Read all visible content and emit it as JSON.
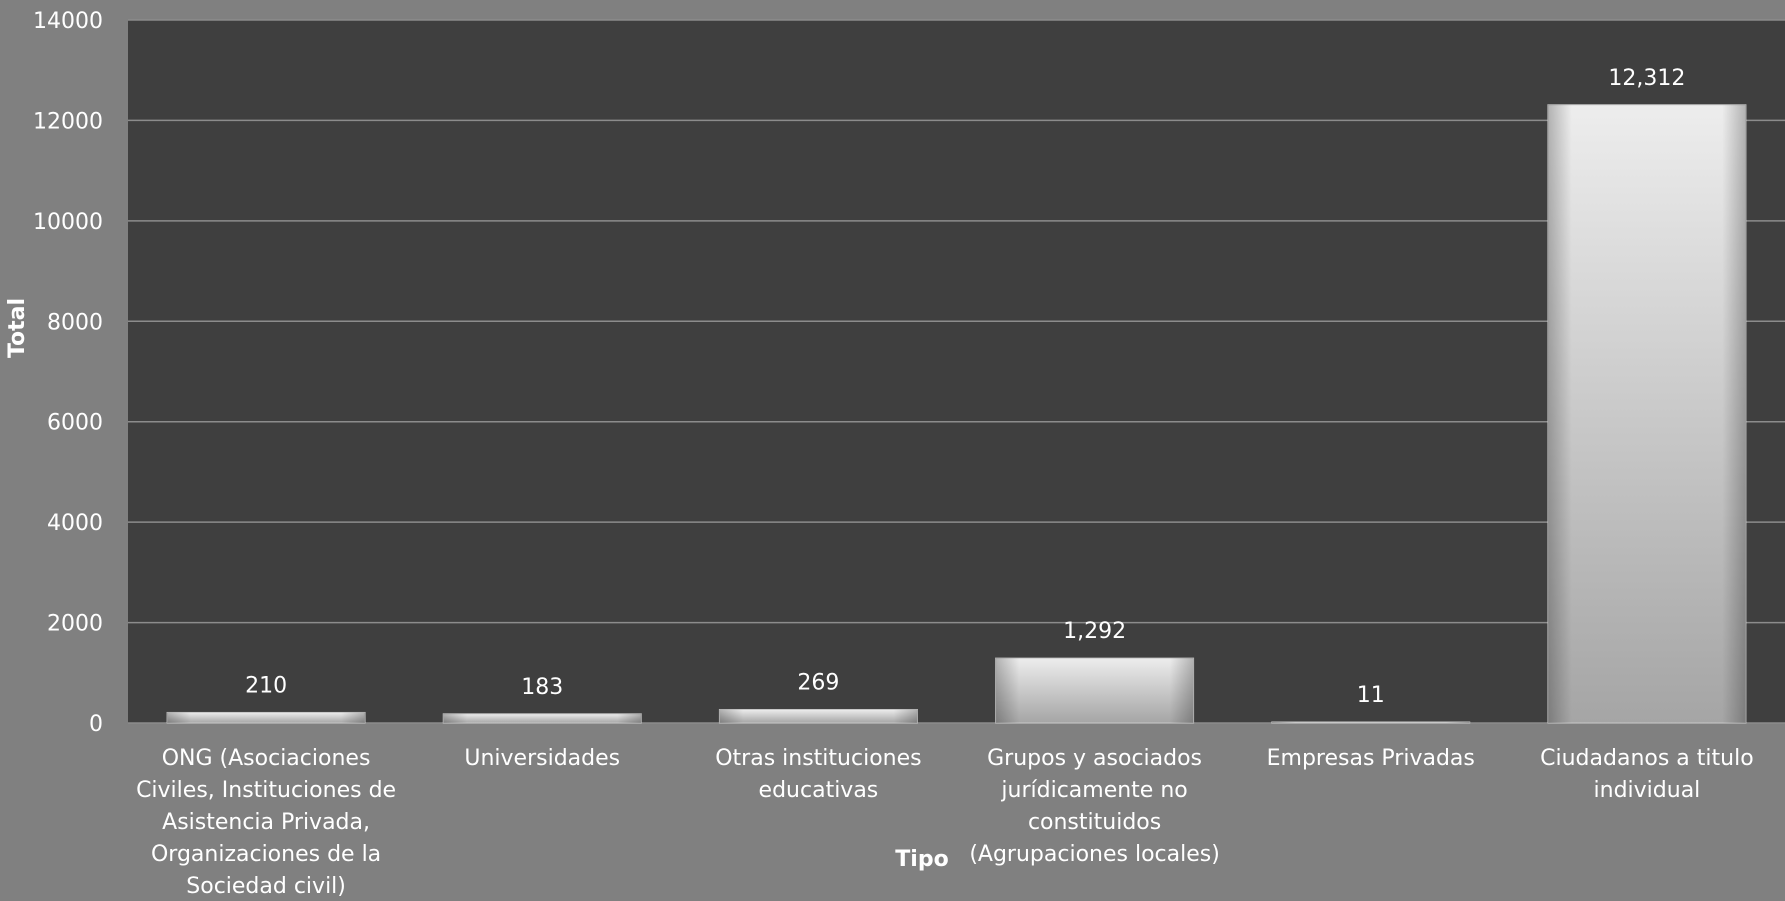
{
  "chart_data": {
    "type": "bar",
    "title": "",
    "xlabel": "Tipo",
    "ylabel": "Total",
    "ylim": [
      0,
      14000
    ],
    "yticks": [
      0,
      2000,
      4000,
      6000,
      8000,
      10000,
      12000,
      14000
    ],
    "grid": true,
    "categories": [
      "ONG (Asociaciones Civiles, Instituciones de Asistencia Privada, Organizaciones de la Sociedad civil)",
      "Universidades",
      "Otras instituciones educativas",
      "Grupos y asociados jurídicamente no constituidos (Agrupaciones locales)",
      "Empresas Privadas",
      "Ciudadanos a titulo individual"
    ],
    "category_lines": [
      [
        "ONG (Asociaciones",
        "Civiles, Instituciones de",
        "Asistencia Privada,",
        "Organizaciones de la",
        "Sociedad civil)"
      ],
      [
        "Universidades"
      ],
      [
        "Otras instituciones",
        "educativas"
      ],
      [
        "Grupos y asociados",
        "jurídicamente no",
        "constituidos",
        "(Agrupaciones locales)"
      ],
      [
        "Empresas Privadas"
      ],
      [
        "Ciudadanos a titulo",
        "individual"
      ]
    ],
    "values": [
      210,
      183,
      269,
      1292,
      11,
      12312
    ],
    "data_labels": [
      "210",
      "183",
      "269",
      "1,292",
      "11",
      "12,312"
    ],
    "colors": {
      "page_bg": "#808080",
      "plot_bg": "#3f3f3f",
      "gridline": "#8c8c8c",
      "bar_light": "#e6e6e6",
      "bar_dark": "#9a9a9a",
      "text": "#ffffff"
    }
  }
}
